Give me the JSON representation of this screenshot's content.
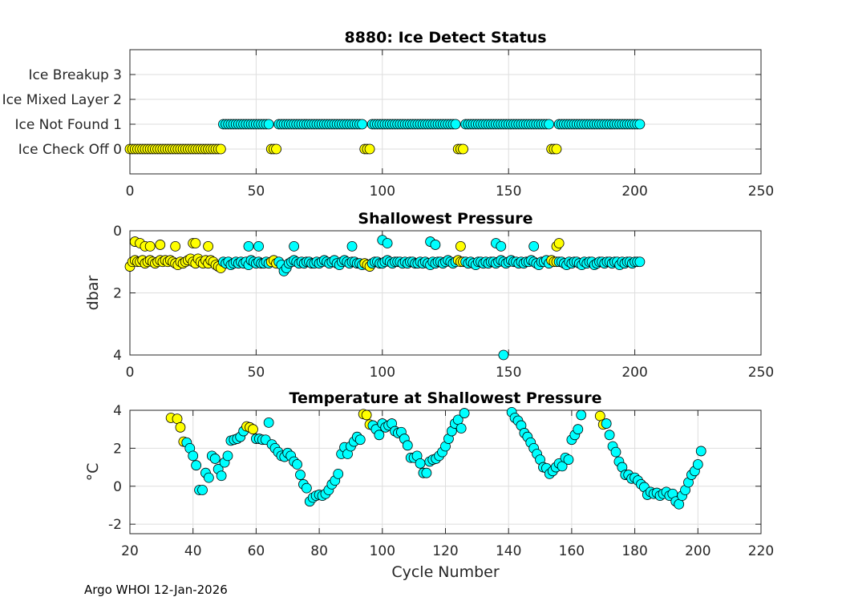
{
  "footer": "Argo WHOI 12-Jan-2026",
  "colors": {
    "ice_check_off": "#ffff00",
    "ice_not_found": "#00ffff",
    "edge": "#000000",
    "grid": "#dedede"
  },
  "chart_data": [
    {
      "type": "scatter",
      "title": "8880: Ice Detect Status",
      "xlabel": "",
      "ylabel": "",
      "xlim": [
        0,
        250
      ],
      "ylim": [
        -1,
        4
      ],
      "xticks": [
        0,
        50,
        100,
        150,
        200,
        250
      ],
      "yticks": [
        0,
        1,
        2,
        3
      ],
      "yticklabels": [
        "Ice Check Off 0",
        "Ice Not Found 1",
        "Ice Mixed Layer 2",
        "Ice Breakup 3"
      ],
      "grid": true,
      "cycle_range": [
        0,
        202
      ],
      "ice_check_off_ranges": [
        [
          0,
          36
        ],
        [
          56,
          58
        ],
        [
          93,
          95
        ],
        [
          130,
          132
        ],
        [
          167,
          169
        ]
      ]
    },
    {
      "type": "scatter",
      "title": "Shallowest Pressure",
      "xlabel": "",
      "ylabel": "dbar",
      "xlim": [
        0,
        250
      ],
      "ylim": [
        0,
        4
      ],
      "y_reversed": true,
      "xticks": [
        0,
        50,
        100,
        150,
        200,
        250
      ],
      "yticks": [
        0,
        2,
        4
      ],
      "grid": true,
      "main_pressure_by_cycle": [
        1.15,
        1.0,
        0.95,
        1.0,
        1.0,
        0.95,
        1.05,
        1.0,
        0.95,
        1.0,
        1.05,
        1.0,
        0.95,
        1.0,
        0.95,
        1.0,
        0.95,
        1.0,
        1.05,
        1.1,
        1.0,
        1.05,
        1.0,
        0.95,
        0.9,
        1.0,
        1.05,
        0.9,
        1.0,
        1.05,
        0.95,
        1.05,
        0.95,
        1.0,
        1.1,
        1.15,
        1.2,
        1.0,
        1.05,
        1.0,
        1.1,
        1.05,
        1.0,
        1.05,
        1.0,
        1.05,
        1.0,
        1.1,
        0.95,
        1.0,
        1.05,
        1.0,
        1.05,
        1.05,
        1.0,
        1.05,
        1.0,
        0.95,
        1.05,
        1.0,
        1.1,
        1.3,
        1.2,
        1.05,
        1.0,
        0.95,
        1.0,
        1.05,
        1.0,
        1.05,
        1.0,
        1.0,
        1.05,
        1.05,
        1.0,
        1.05,
        1.0,
        0.95,
        1.0,
        1.05,
        1.0,
        0.95,
        1.05,
        1.1,
        1.0,
        0.95,
        1.0,
        1.05,
        1.0,
        1.0,
        1.05,
        1.05,
        1.1,
        1.05,
        1.1,
        1.15,
        1.05,
        1.0,
        1.0,
        1.05,
        1.05,
        1.0,
        0.95,
        1.0,
        1.05,
        1.0,
        1.0,
        1.0,
        1.05,
        1.0,
        1.05,
        1.0,
        1.0,
        1.05,
        1.05,
        1.0,
        1.05,
        1.0,
        1.05,
        1.1,
        1.0,
        1.05,
        1.0,
        1.0,
        1.05,
        1.0,
        0.95,
        1.0,
        1.05,
        1.0,
        0.95,
        1.0,
        1.0,
        1.0,
        1.05,
        1.0,
        1.05,
        1.1,
        1.0,
        1.0,
        1.05,
        1.0,
        1.05,
        1.0,
        1.0,
        1.05,
        1.0,
        0.95,
        1.0,
        1.05,
        1.0,
        0.95,
        1.0,
        1.0,
        1.05,
        1.0,
        1.05,
        1.0,
        1.0,
        0.95,
        1.0,
        1.05,
        1.1,
        1.0,
        1.0,
        0.95,
        1.05,
        0.95,
        1.0,
        1.0,
        1.0,
        1.0,
        1.05,
        1.1,
        1.0,
        1.05,
        1.0,
        1.0,
        1.05,
        1.1,
        1.0,
        1.05,
        1.0,
        1.0,
        1.1,
        1.05,
        1.0,
        1.0,
        1.05,
        1.0,
        1.0,
        1.05,
        1.0,
        1.0,
        1.1,
        1.0,
        1.05,
        1.0,
        1.0,
        1.05,
        1.0,
        1.0,
        1.0
      ],
      "extra_points": [
        [
          2,
          0.35,
          0
        ],
        [
          4,
          0.4,
          0
        ],
        [
          6,
          0.5,
          0
        ],
        [
          8,
          0.5,
          0
        ],
        [
          12,
          0.45,
          0
        ],
        [
          18,
          0.5,
          0
        ],
        [
          25,
          0.4,
          0
        ],
        [
          26,
          0.4,
          0
        ],
        [
          31,
          0.5,
          0
        ],
        [
          47,
          0.5,
          1
        ],
        [
          51,
          0.5,
          1
        ],
        [
          65,
          0.5,
          1
        ],
        [
          88,
          0.5,
          1
        ],
        [
          100,
          0.3,
          1
        ],
        [
          102,
          0.4,
          1
        ],
        [
          119,
          0.35,
          1
        ],
        [
          121,
          0.45,
          1
        ],
        [
          131,
          0.5,
          0
        ],
        [
          145,
          0.4,
          1
        ],
        [
          147,
          0.5,
          1
        ],
        [
          148,
          4.0,
          1
        ],
        [
          160,
          0.5,
          1
        ],
        [
          169,
          0.5,
          0
        ],
        [
          170,
          0.4,
          0
        ]
      ]
    },
    {
      "type": "scatter",
      "title": "Temperature at Shallowest Pressure",
      "xlabel": "Cycle Number",
      "ylabel": "°C",
      "xlim": [
        20,
        220
      ],
      "ylim": [
        -2.5,
        4
      ],
      "xticks": [
        20,
        40,
        60,
        80,
        100,
        120,
        140,
        160,
        180,
        200,
        220
      ],
      "yticks": [
        -2,
        0,
        2,
        4
      ],
      "grid": true,
      "points": [
        [
          33,
          3.6,
          0
        ],
        [
          35,
          3.55,
          0
        ],
        [
          36,
          3.1,
          0
        ],
        [
          37,
          2.35,
          0
        ],
        [
          38,
          2.3,
          1
        ],
        [
          39,
          2.0,
          1
        ],
        [
          40,
          1.6,
          1
        ],
        [
          41,
          1.1,
          1
        ],
        [
          42,
          -0.2,
          1
        ],
        [
          43,
          -0.2,
          1
        ],
        [
          44,
          0.7,
          1
        ],
        [
          45,
          0.45,
          1
        ],
        [
          46,
          1.6,
          1
        ],
        [
          47,
          1.45,
          1
        ],
        [
          48,
          0.9,
          1
        ],
        [
          49,
          0.55,
          1
        ],
        [
          50,
          1.25,
          1
        ],
        [
          51,
          1.6,
          1
        ],
        [
          52,
          2.4,
          1
        ],
        [
          53,
          2.45,
          1
        ],
        [
          54,
          2.5,
          1
        ],
        [
          55,
          2.6,
          1
        ],
        [
          56,
          2.9,
          1
        ],
        [
          57,
          3.15,
          0
        ],
        [
          58,
          3.1,
          0
        ],
        [
          59,
          3.0,
          0
        ],
        [
          60,
          2.5,
          1
        ],
        [
          61,
          2.5,
          1
        ],
        [
          62,
          2.45,
          1
        ],
        [
          63,
          2.45,
          1
        ],
        [
          64,
          3.35,
          1
        ],
        [
          65,
          2.2,
          1
        ],
        [
          66,
          2.0,
          1
        ],
        [
          67,
          1.8,
          1
        ],
        [
          68,
          1.6,
          1
        ],
        [
          69,
          1.55,
          1
        ],
        [
          70,
          1.75,
          1
        ],
        [
          71,
          1.6,
          1
        ],
        [
          72,
          1.3,
          1
        ],
        [
          73,
          1.15,
          1
        ],
        [
          74,
          0.6,
          1
        ],
        [
          75,
          0.1,
          1
        ],
        [
          76,
          -0.1,
          1
        ],
        [
          77,
          -0.8,
          1
        ],
        [
          78,
          -0.6,
          1
        ],
        [
          79,
          -0.5,
          1
        ],
        [
          80,
          -0.45,
          1
        ],
        [
          81,
          -0.5,
          1
        ],
        [
          82,
          -0.4,
          1
        ],
        [
          83,
          -0.2,
          1
        ],
        [
          84,
          0.1,
          1
        ],
        [
          85,
          0.3,
          1
        ],
        [
          86,
          0.65,
          1
        ],
        [
          87,
          1.7,
          1
        ],
        [
          88,
          2.05,
          1
        ],
        [
          89,
          1.7,
          1
        ],
        [
          90,
          2.1,
          1
        ],
        [
          91,
          2.35,
          1
        ],
        [
          92,
          2.6,
          1
        ],
        [
          93,
          2.45,
          1
        ],
        [
          94,
          3.8,
          0
        ],
        [
          95,
          3.75,
          0
        ],
        [
          96,
          3.25,
          0
        ],
        [
          97,
          3.2,
          1
        ],
        [
          98,
          3.0,
          1
        ],
        [
          99,
          2.7,
          1
        ],
        [
          100,
          3.3,
          1
        ],
        [
          101,
          3.1,
          1
        ],
        [
          102,
          3.2,
          1
        ],
        [
          103,
          3.3,
          1
        ],
        [
          104,
          2.9,
          1
        ],
        [
          105,
          2.8,
          1
        ],
        [
          106,
          2.85,
          1
        ],
        [
          107,
          2.5,
          1
        ],
        [
          108,
          2.15,
          1
        ],
        [
          109,
          1.5,
          1
        ],
        [
          110,
          1.5,
          1
        ],
        [
          111,
          1.6,
          1
        ],
        [
          112,
          1.2,
          1
        ],
        [
          113,
          0.7,
          1
        ],
        [
          114,
          0.7,
          1
        ],
        [
          115,
          1.3,
          1
        ],
        [
          116,
          1.4,
          1
        ],
        [
          117,
          1.45,
          1
        ],
        [
          118,
          1.6,
          1
        ],
        [
          119,
          1.8,
          1
        ],
        [
          120,
          2.1,
          1
        ],
        [
          121,
          2.5,
          1
        ],
        [
          122,
          2.9,
          1
        ],
        [
          123,
          3.3,
          1
        ],
        [
          124,
          3.5,
          1
        ],
        [
          125,
          3.05,
          1
        ],
        [
          126,
          3.85,
          1
        ],
        [
          141,
          3.9,
          1
        ],
        [
          142,
          3.6,
          1
        ],
        [
          143,
          3.45,
          1
        ],
        [
          144,
          3.2,
          1
        ],
        [
          145,
          2.8,
          1
        ],
        [
          146,
          2.6,
          1
        ],
        [
          147,
          2.3,
          1
        ],
        [
          148,
          2.0,
          1
        ],
        [
          149,
          1.7,
          1
        ],
        [
          150,
          1.4,
          1
        ],
        [
          151,
          1.0,
          1
        ],
        [
          152,
          0.95,
          1
        ],
        [
          153,
          0.65,
          1
        ],
        [
          154,
          0.8,
          1
        ],
        [
          155,
          1.0,
          1
        ],
        [
          156,
          1.2,
          1
        ],
        [
          157,
          1.05,
          1
        ],
        [
          158,
          1.5,
          1
        ],
        [
          159,
          1.4,
          1
        ],
        [
          160,
          2.45,
          1
        ],
        [
          161,
          2.7,
          1
        ],
        [
          162,
          3.0,
          1
        ],
        [
          163,
          3.75,
          1
        ],
        [
          169,
          3.7,
          0
        ],
        [
          170,
          3.25,
          0
        ],
        [
          171,
          3.3,
          1
        ],
        [
          172,
          2.7,
          1
        ],
        [
          173,
          2.1,
          1
        ],
        [
          174,
          1.8,
          1
        ],
        [
          175,
          1.3,
          1
        ],
        [
          176,
          1.0,
          1
        ],
        [
          177,
          0.6,
          1
        ],
        [
          178,
          0.6,
          1
        ],
        [
          179,
          0.4,
          1
        ],
        [
          180,
          0.45,
          1
        ],
        [
          181,
          0.3,
          1
        ],
        [
          182,
          0.1,
          1
        ],
        [
          183,
          -0.05,
          1
        ],
        [
          184,
          -0.45,
          1
        ],
        [
          185,
          -0.3,
          1
        ],
        [
          186,
          -0.4,
          1
        ],
        [
          187,
          -0.35,
          1
        ],
        [
          188,
          -0.5,
          1
        ],
        [
          189,
          -0.4,
          1
        ],
        [
          190,
          -0.3,
          1
        ],
        [
          191,
          -0.5,
          1
        ],
        [
          192,
          -0.4,
          1
        ],
        [
          193,
          -0.8,
          1
        ],
        [
          194,
          -0.95,
          1
        ],
        [
          195,
          -0.5,
          1
        ],
        [
          196,
          -0.2,
          1
        ],
        [
          197,
          0.2,
          1
        ],
        [
          198,
          0.6,
          1
        ],
        [
          199,
          0.8,
          1
        ],
        [
          200,
          1.15,
          1
        ],
        [
          201,
          1.85,
          1
        ]
      ]
    }
  ]
}
